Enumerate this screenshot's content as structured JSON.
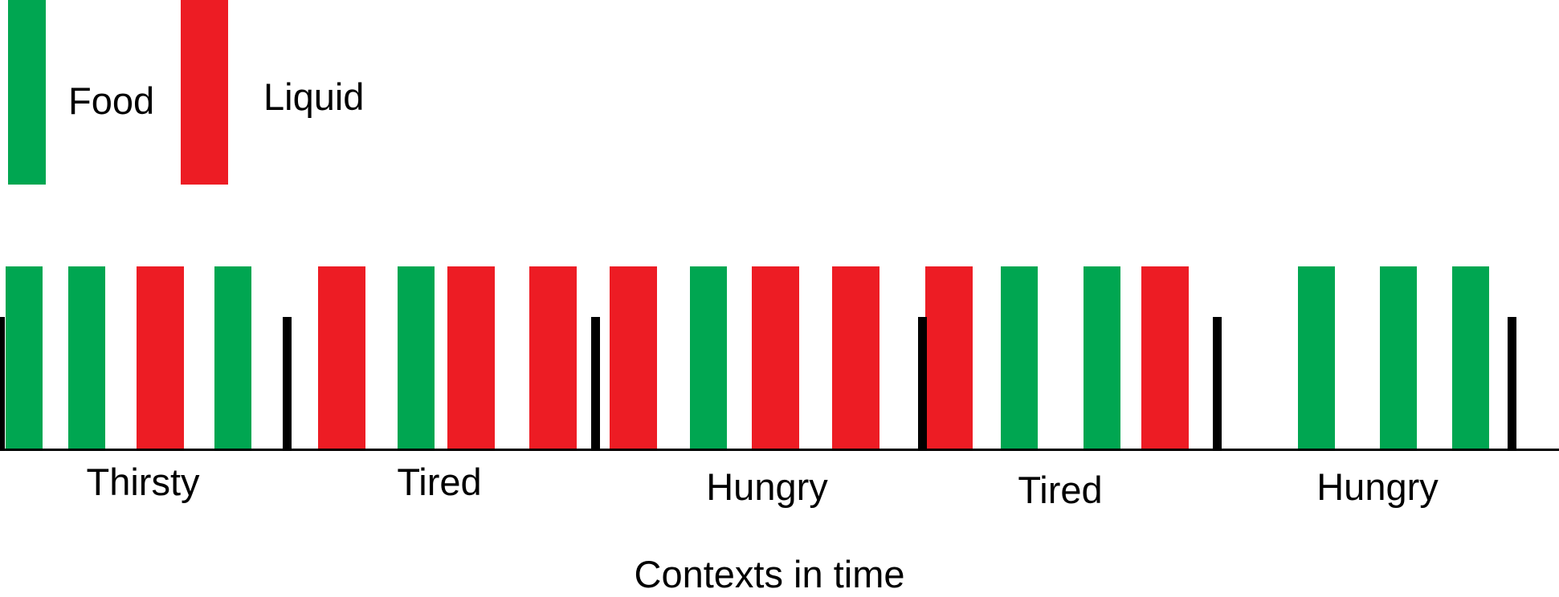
{
  "colors": {
    "food": "#00A651",
    "liquid": "#ED1C24",
    "axis": "#000000"
  },
  "legend": [
    {
      "key": "food",
      "label": "Food"
    },
    {
      "key": "liquid",
      "label": "Liquid"
    }
  ],
  "sequence": [
    "food",
    "food",
    "liquid",
    "food",
    "liquid",
    "food",
    "liquid",
    "liquid",
    "liquid",
    "food",
    "liquid",
    "liquid",
    "liquid",
    "food",
    "food",
    "liquid",
    "food",
    "food",
    "food"
  ],
  "contexts": [
    "Thirsty",
    "Tired",
    "Hungry",
    "Tired",
    "Hungry"
  ],
  "axis_title": "Contexts in time"
}
